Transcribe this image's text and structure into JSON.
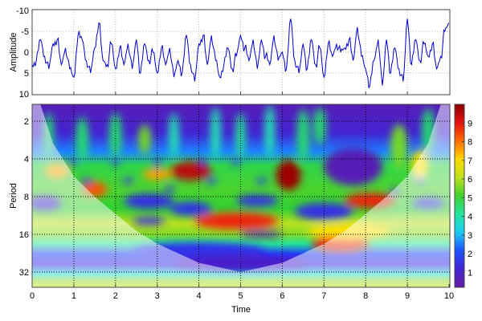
{
  "chart_data": [
    {
      "type": "line",
      "ylabel": "Amplitude",
      "xlim": [
        0,
        10
      ],
      "ylim": [
        -10,
        10
      ],
      "y_inverted": true,
      "yticks": [
        "-10",
        "-5",
        "0",
        "5",
        "10"
      ],
      "grid": true,
      "line_color": "#0000cc",
      "x_step": 0.1,
      "values": [
        3,
        2,
        -3,
        1,
        4,
        -2,
        -3,
        3,
        -1,
        4,
        6,
        -4,
        -3,
        2,
        5,
        -1,
        -7,
        2,
        3,
        -2,
        4,
        -1,
        3,
        -2,
        4,
        -3,
        5,
        -2,
        2,
        0,
        5,
        -1,
        3,
        -1,
        6,
        2,
        5,
        -4,
        3,
        7,
        -2,
        -4,
        3,
        -4,
        2,
        6,
        3,
        -1,
        4,
        1,
        -4,
        -1,
        2,
        -3,
        4,
        -3,
        1,
        3,
        -4,
        2,
        0,
        4,
        -8,
        2,
        5,
        -2,
        4,
        -3,
        3,
        -1,
        6,
        -2,
        1,
        -2,
        0,
        -1,
        -3,
        2,
        -6,
        1,
        4,
        8,
        2,
        -3,
        8,
        -3,
        5,
        -1,
        4,
        7,
        -8,
        3,
        -3,
        2,
        -2,
        1,
        -2,
        4,
        1,
        -5,
        -7
      ]
    },
    {
      "type": "heatmap",
      "xlabel": "Time",
      "ylabel": "Period",
      "xlim": [
        0,
        10
      ],
      "xticks": [
        "0",
        "1",
        "2",
        "3",
        "4",
        "5",
        "6",
        "7",
        "8",
        "9",
        "10"
      ],
      "yticks": [
        "2",
        "4",
        "8",
        "16",
        "32"
      ],
      "y_scale": "log2",
      "ylim": [
        1.47,
        43
      ],
      "grid": true,
      "colorbar": {
        "ticks": [
          "1",
          "2",
          "3",
          "4",
          "5",
          "6",
          "7",
          "8",
          "9"
        ],
        "range": [
          0.2,
          10
        ],
        "colormap": "jet"
      },
      "background_profile": [
        {
          "period": 1.47,
          "value": 0.6
        },
        {
          "period": 2.5,
          "value": 1.2
        },
        {
          "period": 3.5,
          "value": 2.5
        },
        {
          "period": 4.5,
          "value": 4.8
        },
        {
          "period": 7,
          "value": 5.2
        },
        {
          "period": 10,
          "value": 5.0
        },
        {
          "period": 13,
          "value": 6.0
        },
        {
          "period": 16,
          "value": 5.6
        },
        {
          "period": 19,
          "value": 4.2
        },
        {
          "period": 23,
          "value": 2.0
        },
        {
          "period": 28,
          "value": 1.4
        },
        {
          "period": 33,
          "value": 3.5
        },
        {
          "period": 38,
          "value": 5.8
        },
        {
          "period": 43,
          "value": 6.2
        }
      ],
      "features": [
        {
          "t": 3.8,
          "period": 5,
          "value": 9.5,
          "wt": 0.5,
          "wo": 0.25
        },
        {
          "t": 6.15,
          "period": 5.4,
          "value": 9.8,
          "wt": 0.3,
          "wo": 0.4
        },
        {
          "t": 1.5,
          "period": 7,
          "value": 8.3,
          "wt": 0.3,
          "wo": 0.2
        },
        {
          "t": 0.6,
          "period": 5,
          "value": 7.5,
          "wt": 0.3,
          "wo": 0.2
        },
        {
          "t": 3.0,
          "period": 5.3,
          "value": 7.6,
          "wt": 0.35,
          "wo": 0.15
        },
        {
          "t": 4.9,
          "period": 12.5,
          "value": 8.8,
          "wt": 1.0,
          "wo": 0.22
        },
        {
          "t": 7.4,
          "period": 19,
          "value": 8.8,
          "wt": 0.7,
          "wo": 0.22
        },
        {
          "t": 8.1,
          "period": 8.6,
          "value": 8.8,
          "wt": 0.6,
          "wo": 0.2
        },
        {
          "t": 9.3,
          "period": 4.5,
          "value": 7,
          "wt": 0.2,
          "wo": 0.4
        },
        {
          "t": 7.6,
          "period": 15,
          "value": 7,
          "wt": 1.0,
          "wo": 0.2
        },
        {
          "t": 4.0,
          "period": 22,
          "value": 1.6,
          "wt": 1.6,
          "wo": 0.25
        },
        {
          "t": 5.0,
          "period": 27,
          "value": 1.0,
          "wt": 1.6,
          "wo": 0.2
        },
        {
          "t": 2.8,
          "period": 8.7,
          "value": 1.5,
          "wt": 0.6,
          "wo": 0.2
        },
        {
          "t": 3.8,
          "period": 10,
          "value": 1.6,
          "wt": 0.5,
          "wo": 0.18
        },
        {
          "t": 5.4,
          "period": 8.6,
          "value": 1.5,
          "wt": 0.5,
          "wo": 0.15
        },
        {
          "t": 7.0,
          "period": 10.5,
          "value": 1.5,
          "wt": 0.7,
          "wo": 0.22
        },
        {
          "t": 5.5,
          "period": 16,
          "value": 1.0,
          "wt": 0.5,
          "wo": 0.08
        },
        {
          "t": 2.8,
          "period": 12.5,
          "value": 1.5,
          "wt": 0.4,
          "wo": 0.1
        },
        {
          "t": 7.7,
          "period": 4.6,
          "value": 0.6,
          "wt": 0.7,
          "wo": 0.5
        },
        {
          "t": 0.4,
          "period": 2.6,
          "value": 4.5,
          "wt": 0.12,
          "wo": 0.6
        },
        {
          "t": 1.2,
          "period": 2.8,
          "value": 4.5,
          "wt": 0.15,
          "wo": 0.6
        },
        {
          "t": 2.0,
          "period": 2.6,
          "value": 4.5,
          "wt": 0.15,
          "wo": 0.6
        },
        {
          "t": 2.7,
          "period": 2.8,
          "value": 5.5,
          "wt": 0.15,
          "wo": 0.4
        },
        {
          "t": 3.4,
          "period": 2.6,
          "value": 4.0,
          "wt": 0.12,
          "wo": 0.6
        },
        {
          "t": 4.4,
          "period": 2.5,
          "value": 4.0,
          "wt": 0.12,
          "wo": 0.7
        },
        {
          "t": 5.0,
          "period": 2.6,
          "value": 4.2,
          "wt": 0.12,
          "wo": 0.6
        },
        {
          "t": 5.7,
          "period": 2.4,
          "value": 4.0,
          "wt": 0.12,
          "wo": 0.7
        },
        {
          "t": 6.5,
          "period": 2.6,
          "value": 4.5,
          "wt": 0.15,
          "wo": 0.7
        },
        {
          "t": 6.9,
          "period": 2.2,
          "value": 4.5,
          "wt": 0.15,
          "wo": 0.5
        },
        {
          "t": 8.8,
          "period": 3.2,
          "value": 5.5,
          "wt": 0.2,
          "wo": 0.6
        },
        {
          "t": 9.5,
          "period": 2.4,
          "value": 4.5,
          "wt": 0.15,
          "wo": 0.6
        },
        {
          "t": 1.0,
          "period": 4.2,
          "value": 1.5,
          "wt": 0.1,
          "wo": 0.1
        },
        {
          "t": 2.0,
          "period": 4.2,
          "value": 1.5,
          "wt": 0.1,
          "wo": 0.1
        },
        {
          "t": 3.0,
          "period": 4.3,
          "value": 1.5,
          "wt": 0.1,
          "wo": 0.1
        },
        {
          "t": 4.1,
          "period": 4.2,
          "value": 1.5,
          "wt": 0.1,
          "wo": 0.1
        },
        {
          "t": 4.9,
          "period": 4.2,
          "value": 1.5,
          "wt": 0.1,
          "wo": 0.1
        },
        {
          "t": 1.3,
          "period": 6,
          "value": 1.5,
          "wt": 0.12,
          "wo": 0.08
        },
        {
          "t": 2.3,
          "period": 6,
          "value": 1.5,
          "wt": 0.12,
          "wo": 0.08
        },
        {
          "t": 3.3,
          "period": 7,
          "value": 1.5,
          "wt": 0.12,
          "wo": 0.08
        },
        {
          "t": 4.3,
          "period": 6,
          "value": 1.8,
          "wt": 0.12,
          "wo": 0.08
        },
        {
          "t": 5.5,
          "period": 6,
          "value": 1.8,
          "wt": 0.12,
          "wo": 0.08
        },
        {
          "t": 8.7,
          "period": 7.3,
          "value": 1.5,
          "wt": 0.12,
          "wo": 0.08
        },
        {
          "t": 9.3,
          "period": 6,
          "value": 1.5,
          "wt": 0.12,
          "wo": 0.08
        },
        {
          "t": 9.5,
          "period": 9,
          "value": 1.5,
          "wt": 0.4,
          "wo": 0.15
        },
        {
          "t": 0.3,
          "period": 9,
          "value": 1.2,
          "wt": 0.4,
          "wo": 0.2
        }
      ],
      "cone_of_influence": [
        {
          "t": 0.2,
          "period": 1.47
        },
        {
          "t": 0.5,
          "period": 3
        },
        {
          "t": 1,
          "period": 5.5
        },
        {
          "t": 1.5,
          "period": 8
        },
        {
          "t": 2,
          "period": 11
        },
        {
          "t": 2.5,
          "period": 15
        },
        {
          "t": 3,
          "period": 19
        },
        {
          "t": 4,
          "period": 27
        },
        {
          "t": 5,
          "period": 32
        },
        {
          "t": 6,
          "period": 27
        },
        {
          "t": 7,
          "period": 19
        },
        {
          "t": 7.5,
          "period": 15
        },
        {
          "t": 8,
          "period": 11
        },
        {
          "t": 8.5,
          "period": 8
        },
        {
          "t": 9,
          "period": 5.5
        },
        {
          "t": 9.5,
          "period": 3
        },
        {
          "t": 9.8,
          "period": 1.47
        }
      ]
    }
  ]
}
